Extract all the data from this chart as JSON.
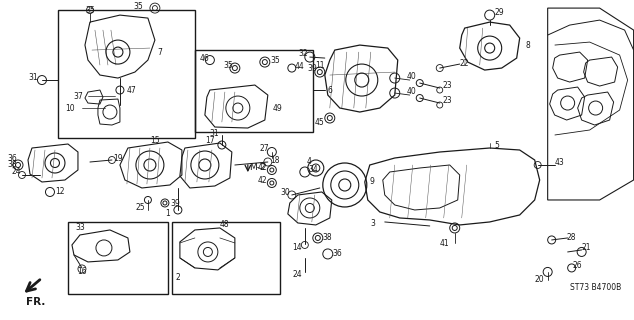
{
  "background_color": "#ffffff",
  "line_color": "#1a1a1a",
  "fig_width": 6.34,
  "fig_height": 3.2,
  "dpi": 100,
  "diagram_code": "ST73 B4700B"
}
